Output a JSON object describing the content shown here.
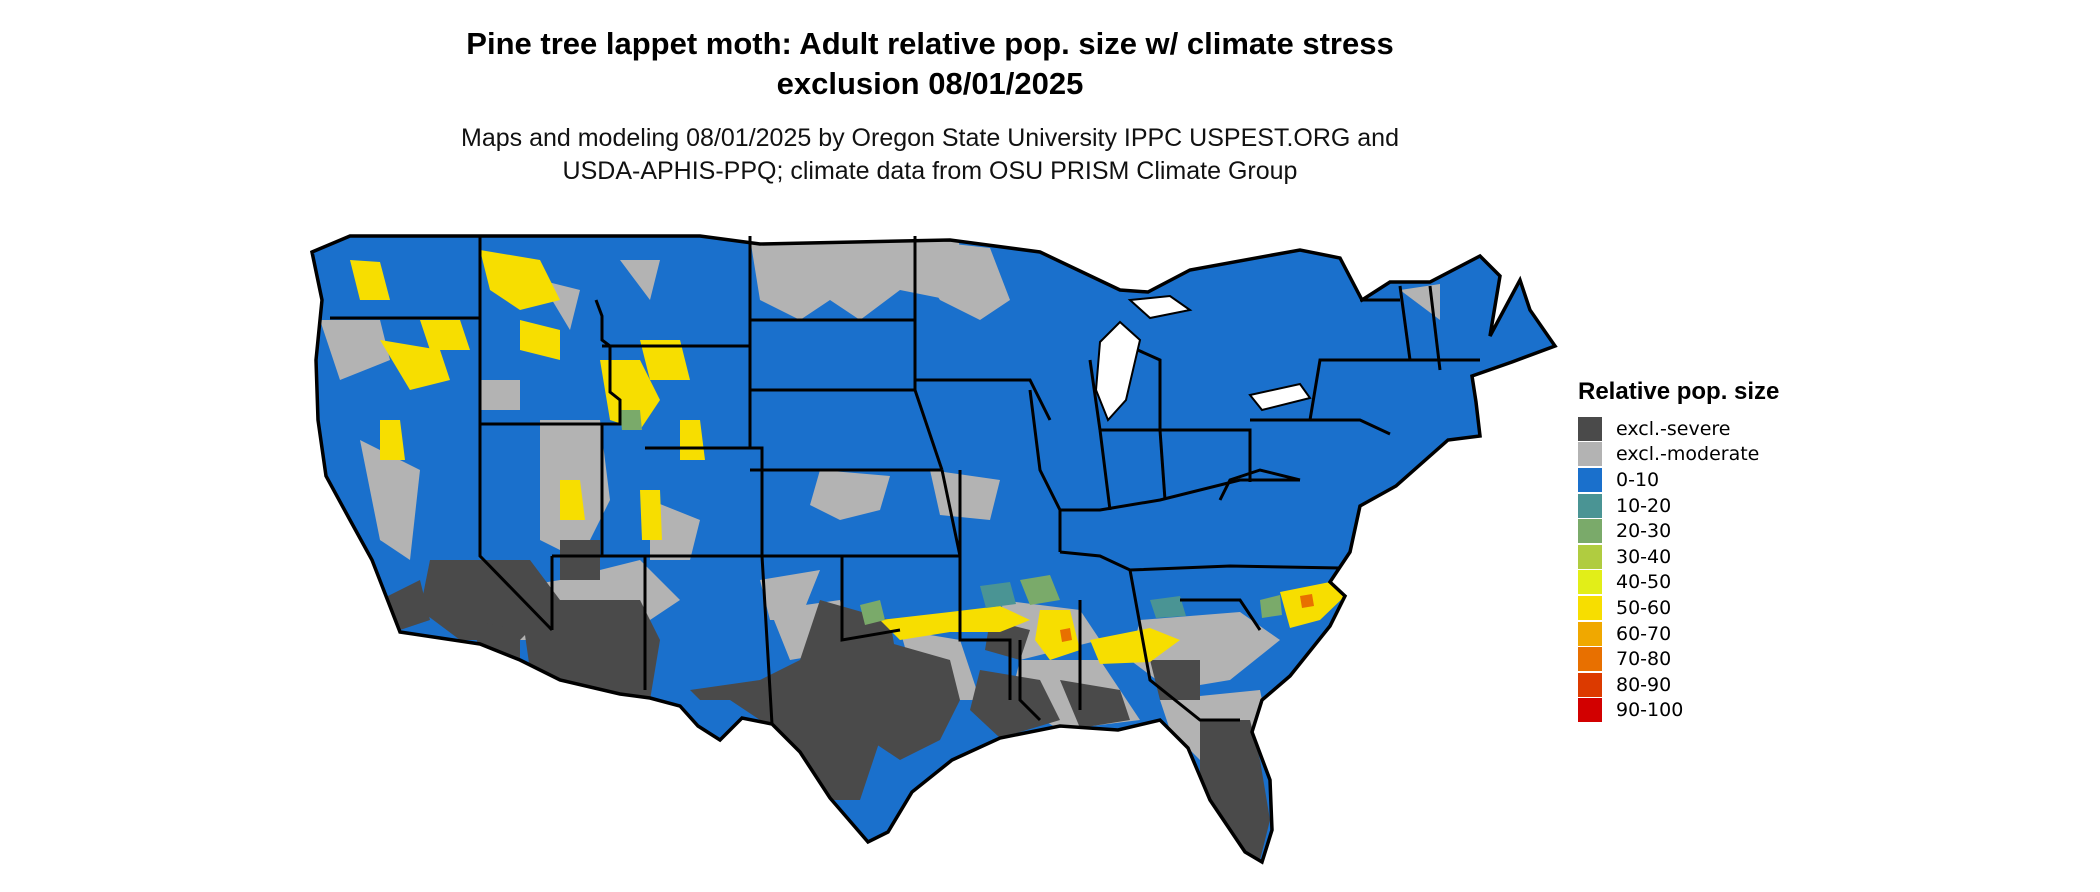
{
  "title_line1": "Pine tree lappet moth: Adult relative pop. size w/ climate stress",
  "title_line2": "exclusion 08/01/2025",
  "subtitle_line1": "Maps and modeling 08/01/2025 by Oregon State University IPPC USPEST.ORG and",
  "subtitle_line2": "USDA-APHIS-PPQ; climate data from OSU PRISM Climate Group",
  "legend": {
    "title": "Relative pop. size",
    "items": [
      {
        "label": "excl.-severe",
        "color": "#4a4a4a"
      },
      {
        "label": "excl.-moderate",
        "color": "#b3b3b3"
      },
      {
        "label": "0-10",
        "color": "#1a70cc"
      },
      {
        "label": "10-20",
        "color": "#4a9494"
      },
      {
        "label": "20-30",
        "color": "#7aaa6a"
      },
      {
        "label": "30-40",
        "color": "#b0cc40"
      },
      {
        "label": "40-50",
        "color": "#e2ee18"
      },
      {
        "label": "50-60",
        "color": "#f7de00"
      },
      {
        "label": "60-70",
        "color": "#f0a800"
      },
      {
        "label": "70-80",
        "color": "#e87000"
      },
      {
        "label": "80-90",
        "color": "#dc3a00"
      },
      {
        "label": "90-100",
        "color": "#d20000"
      }
    ]
  }
}
